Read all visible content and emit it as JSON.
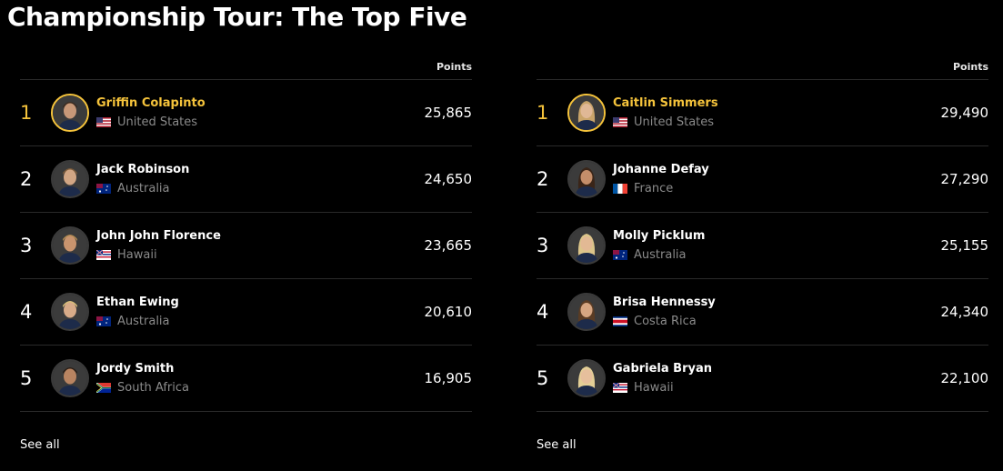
{
  "title": "Championship Tour: The Top Five",
  "colors": {
    "accent": "#f5c33b",
    "background": "#000000",
    "muted": "#8a8a8a"
  },
  "panels": [
    {
      "points_header": "Points",
      "see_all": "See all",
      "rows": [
        {
          "rank": "1",
          "name": "Griffin Colapinto",
          "country": "United States",
          "flag": "us-flag-icon",
          "points": "25,865"
        },
        {
          "rank": "2",
          "name": "Jack Robinson",
          "country": "Australia",
          "flag": "au-flag-icon",
          "points": "24,650"
        },
        {
          "rank": "3",
          "name": "John John Florence",
          "country": "Hawaii",
          "flag": "hawaii-flag-icon",
          "points": "23,665"
        },
        {
          "rank": "4",
          "name": "Ethan Ewing",
          "country": "Australia",
          "flag": "au-flag-icon",
          "points": "20,610"
        },
        {
          "rank": "5",
          "name": "Jordy Smith",
          "country": "South Africa",
          "flag": "za-flag-icon",
          "points": "16,905"
        }
      ]
    },
    {
      "points_header": "Points",
      "see_all": "See all",
      "rows": [
        {
          "rank": "1",
          "name": "Caitlin Simmers",
          "country": "United States",
          "flag": "us-flag-icon",
          "points": "29,490"
        },
        {
          "rank": "2",
          "name": "Johanne Defay",
          "country": "France",
          "flag": "fr-flag-icon",
          "points": "27,290"
        },
        {
          "rank": "3",
          "name": "Molly Picklum",
          "country": "Australia",
          "flag": "au-flag-icon",
          "points": "25,155"
        },
        {
          "rank": "4",
          "name": "Brisa Hennessy",
          "country": "Costa Rica",
          "flag": "cr-flag-icon",
          "points": "24,340"
        },
        {
          "rank": "5",
          "name": "Gabriela Bryan",
          "country": "Hawaii",
          "flag": "hawaii-flag-icon",
          "points": "22,100"
        }
      ]
    }
  ]
}
